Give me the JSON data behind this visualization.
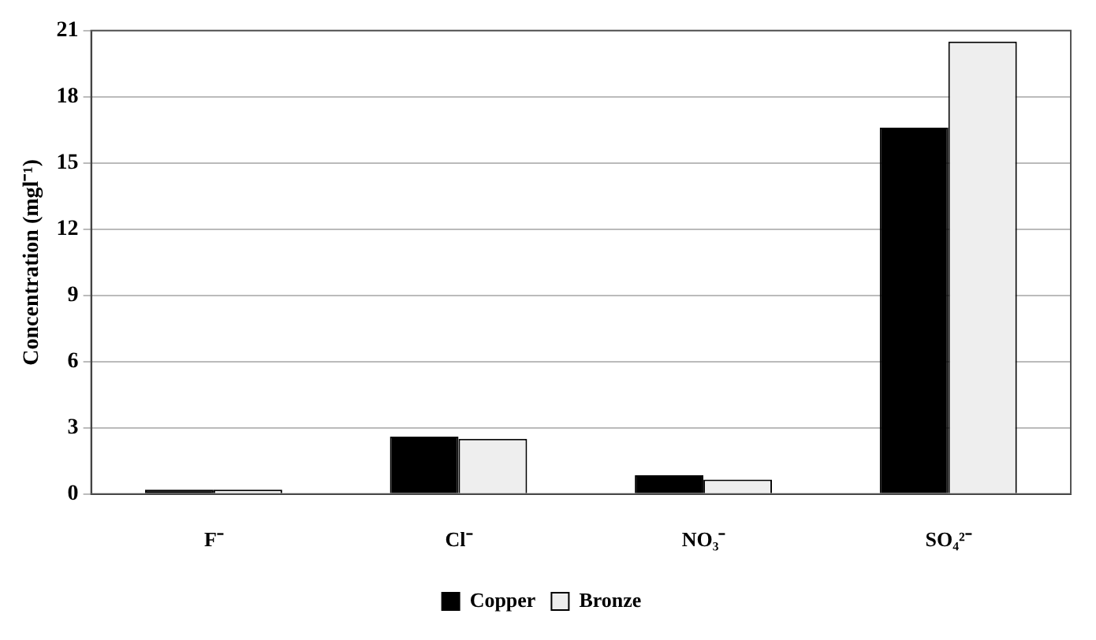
{
  "chart_data": {
    "type": "bar",
    "ylabel": "Concentration (mgl⁻¹)",
    "categories": [
      "F⁻",
      "Cl⁻",
      "NO₃⁻",
      "SO₄²⁻"
    ],
    "series": [
      {
        "name": "Copper",
        "color": "#000000",
        "values": [
          0.2,
          2.6,
          0.85,
          16.6
        ]
      },
      {
        "name": "Bronze",
        "color": "#eeeeee",
        "values": [
          0.2,
          2.5,
          0.65,
          20.5
        ]
      }
    ],
    "ylim": [
      0,
      21
    ],
    "yticks": [
      0,
      3,
      6,
      9,
      12,
      15,
      18,
      21
    ],
    "grid": "y",
    "legend": "bottom"
  }
}
